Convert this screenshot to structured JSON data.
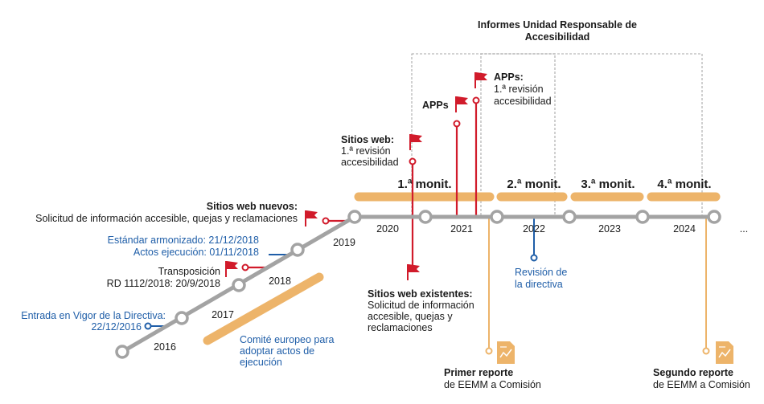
{
  "colors": {
    "track": "#a3a3a3",
    "red": "#d11b2b",
    "blue": "#1f5ea8",
    "orange": "#edb46a",
    "text": "#1a1a1a",
    "dash": "#8a8a8a"
  },
  "header": {
    "title_line1": "Informes Unidad Responsable de",
    "title_line2": "Accesibilidad"
  },
  "years": {
    "y2016": "2016",
    "y2017": "2017",
    "y2018": "2018",
    "y2019": "2019",
    "y2020": "2020",
    "y2021": "2021",
    "y2022": "2022",
    "y2023": "2023",
    "y2024": "2024",
    "ellipsis": "..."
  },
  "monitoring": {
    "m1": "1.ª monit.",
    "m2": "2.ª monit.",
    "m3": "3.ª monit.",
    "m4": "4.ª monit."
  },
  "events": {
    "entrada_line1": "Entrada en Vigor de la Directiva:",
    "entrada_line2": "22/12/2016",
    "estandar": "Estándar armonizado: 21/12/2018",
    "actos": "Actos ejecución: 01/11/2018",
    "transposicion_line1": "Transposición",
    "transposicion_line2": "RD 1112/2018: 20/9/2018",
    "sitios_nuevos_title": "Sitios web nuevos:",
    "sitios_nuevos_desc": "Solicitud de información accesible, quejas y reclamaciones",
    "sitios_web_title": "Sitios web:",
    "sitios_web_line1": "1.ª revisión",
    "sitios_web_line2": "accesibilidad",
    "apps1": "APPs",
    "apps2_title": "APPs:",
    "apps2_line1": "1.ª revisión",
    "apps2_line2": "accesibilidad",
    "existentes_title": "Sitios web existentes:",
    "existentes_line1": "Solicitud de información",
    "existentes_line2": "accesible, quejas y",
    "existentes_line3": "reclamaciones",
    "revision_line1": "Revisión de",
    "revision_line2": "la directiva",
    "comite_line1": "Comité europeo para",
    "comite_line2": "adoptar actos de",
    "comite_line3": "ejecución",
    "primer_title": "Primer reporte",
    "primer_line": "de EEMM a Comisión",
    "segundo_title": "Segundo reporte",
    "segundo_line": "de EEMM a Comisión"
  }
}
